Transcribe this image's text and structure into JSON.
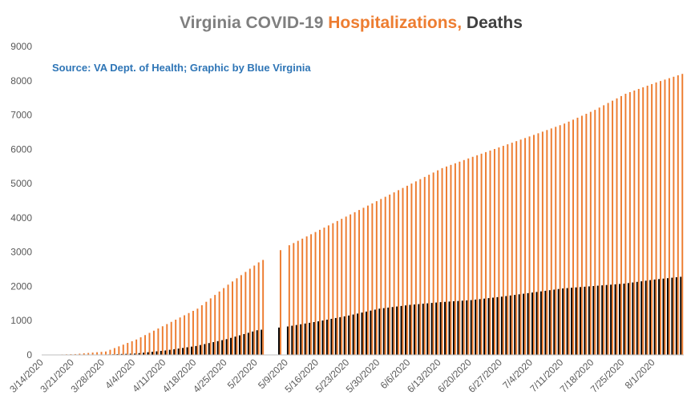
{
  "chart_data": {
    "type": "bar",
    "title": {
      "part1": "Virginia COVID-19 ",
      "part2": "Hospitalizations,",
      "part3": " Deaths"
    },
    "annotation": "Source: VA Dept. of Health; Graphic by Blue Virginia",
    "xlabel": "",
    "ylabel": "",
    "ylim": [
      0,
      9000
    ],
    "y_ticks": [
      0,
      1000,
      2000,
      3000,
      4000,
      5000,
      6000,
      7000,
      8000,
      9000
    ],
    "x_start": "3/14/2020",
    "x_end": "8/7/2020",
    "x_tick_labels": [
      "3/14/2020",
      "3/21/2020",
      "3/28/2020",
      "4/4/2020",
      "4/11/2020",
      "4/18/2020",
      "4/25/2020",
      "5/2/2020",
      "5/9/2020",
      "5/16/2020",
      "5/23/2020",
      "5/30/2020",
      "6/6/2020",
      "6/13/2020",
      "6/20/2020",
      "6/27/2020",
      "7/4/2020",
      "7/11/2020",
      "7/18/2020",
      "7/25/2020",
      "8/1/2020"
    ],
    "series": [
      {
        "name": "Hospitalizations",
        "color": "#ed7d31",
        "points": [
          [
            "3/14/2020",
            0
          ],
          [
            "3/21/2020",
            25
          ],
          [
            "3/28/2020",
            100
          ],
          [
            "4/4/2020",
            450
          ],
          [
            "4/11/2020",
            900
          ],
          [
            "4/18/2020",
            1350
          ],
          [
            "4/25/2020",
            2050
          ],
          [
            "5/2/2020",
            2700
          ],
          [
            "5/9/2020",
            3200
          ],
          [
            "5/16/2020",
            3650
          ],
          [
            "5/23/2020",
            4100
          ],
          [
            "5/30/2020",
            4550
          ],
          [
            "6/6/2020",
            5000
          ],
          [
            "6/13/2020",
            5450
          ],
          [
            "6/20/2020",
            5780
          ],
          [
            "6/27/2020",
            6100
          ],
          [
            "7/4/2020",
            6420
          ],
          [
            "7/11/2020",
            6750
          ],
          [
            "7/18/2020",
            7150
          ],
          [
            "7/25/2020",
            7620
          ],
          [
            "8/1/2020",
            7950
          ],
          [
            "8/7/2020",
            8200
          ]
        ]
      },
      {
        "name": "Deaths",
        "color": "#000000",
        "points": [
          [
            "3/14/2020",
            0
          ],
          [
            "3/21/2020",
            2
          ],
          [
            "3/28/2020",
            10
          ],
          [
            "4/4/2020",
            40
          ],
          [
            "4/11/2020",
            130
          ],
          [
            "4/18/2020",
            260
          ],
          [
            "4/25/2020",
            460
          ],
          [
            "5/2/2020",
            720
          ],
          [
            "5/9/2020",
            830
          ],
          [
            "5/16/2020",
            980
          ],
          [
            "5/23/2020",
            1150
          ],
          [
            "5/30/2020",
            1350
          ],
          [
            "6/6/2020",
            1460
          ],
          [
            "6/13/2020",
            1540
          ],
          [
            "6/20/2020",
            1600
          ],
          [
            "6/27/2020",
            1700
          ],
          [
            "7/4/2020",
            1820
          ],
          [
            "7/11/2020",
            1940
          ],
          [
            "7/18/2020",
            2010
          ],
          [
            "7/25/2020",
            2080
          ],
          [
            "8/1/2020",
            2200
          ],
          [
            "8/7/2020",
            2280
          ]
        ]
      }
    ],
    "missing_dates": [
      "5/4/2020",
      "5/5/2020",
      "5/6/2020",
      "5/8/2020"
    ],
    "grid": false,
    "legend": "none",
    "colors": {
      "title_gray": "#7f7f7f",
      "title_orange": "#ed7d31",
      "title_dark": "#404040",
      "annotation": "#2e75b6",
      "axis": "#bfbfbf"
    }
  }
}
